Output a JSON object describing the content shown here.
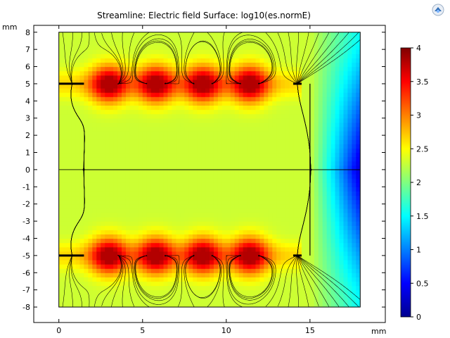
{
  "chart_data": {
    "type": "heatmap",
    "title": "Streamline: Electric field  Surface: log10(es.normE)",
    "x_unit": "mm",
    "y_unit": "mm",
    "xlim": [
      -1.5,
      19.5
    ],
    "ylim": [
      -8.9,
      8.4
    ],
    "domain": {
      "x": [
        0,
        18
      ],
      "y": [
        -8,
        8
      ]
    },
    "x_ticks": [
      0,
      5,
      10,
      15
    ],
    "y_ticks": [
      8,
      7,
      6,
      5,
      4,
      3,
      2,
      1,
      0,
      -1,
      -2,
      -3,
      -4,
      -5,
      -6,
      -7,
      -8
    ],
    "colorbar": {
      "min": 0,
      "max": 4,
      "ticks": [
        4,
        3.5,
        3,
        2.5,
        2,
        1.5,
        1,
        0.5,
        0
      ],
      "colormap": "rainbow"
    },
    "electrode_rows_y": [
      5,
      -5
    ],
    "electrode_bars": [
      {
        "x0": 0,
        "x1": 1.5
      },
      {
        "x0": 14.0,
        "x1": 14.5
      }
    ],
    "point_charges_x": [
      3.0,
      5.8,
      8.6,
      11.4
    ],
    "secondary_nodes_x": [
      1.6,
      4.4,
      7.2,
      10.0,
      12.8
    ],
    "inner_boundary_x": 15.0,
    "field_summary": {
      "bulk_level": 2.3,
      "peak_level": 3.8,
      "low_region": {
        "x": [
          16,
          18
        ],
        "y": [
          -2,
          2
        ],
        "level": 0.3
      }
    }
  }
}
